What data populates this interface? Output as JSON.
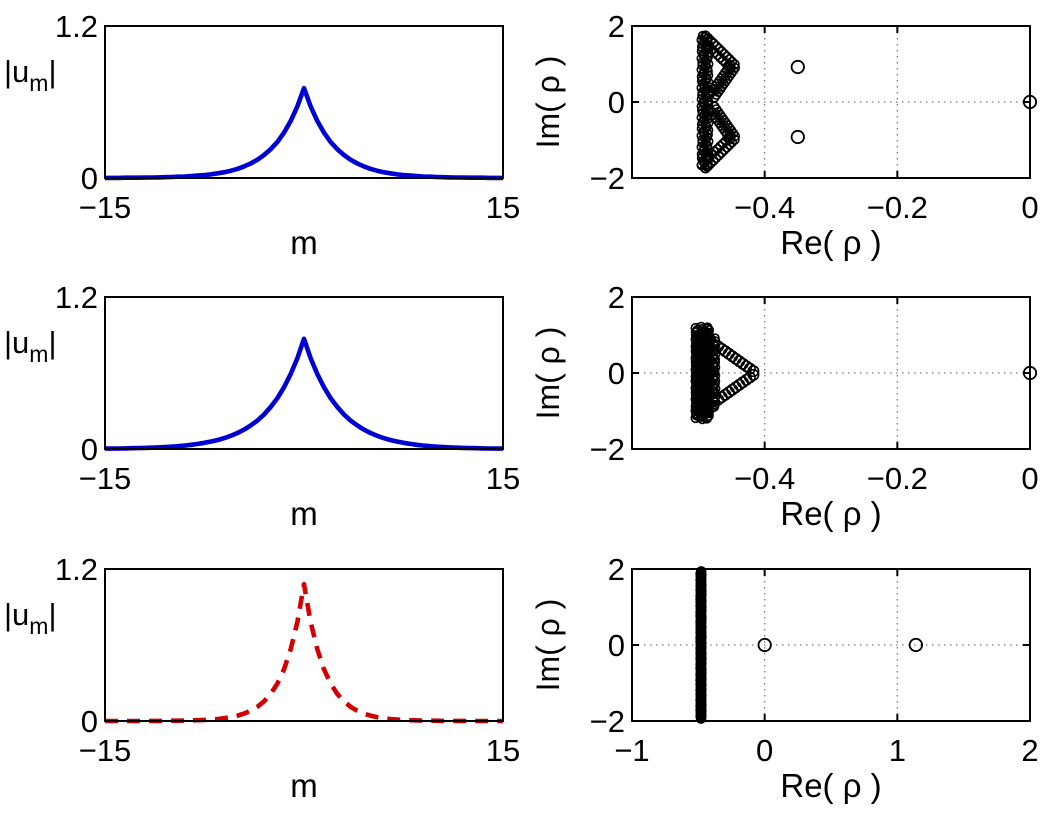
{
  "figure": {
    "background": "#ffffff",
    "axis_color": "#000000",
    "grid_color": "#7a7a7a",
    "marker_color": "#000000",
    "blue_line_color": "#0000d2",
    "red_line_color": "#d40000"
  },
  "chart_data": [
    {
      "id": "profile-top",
      "type": "line",
      "line_style": "solid",
      "color_key": "blue_line_color",
      "xlim": [
        -15,
        15
      ],
      "ylim": [
        0,
        1.2
      ],
      "xticks": [
        {
          "v": -15,
          "t": "−15"
        },
        {
          "v": 15,
          "t": "15"
        }
      ],
      "yticks": [
        {
          "v": 0,
          "t": "0"
        },
        {
          "v": 1.2,
          "t": "1.2"
        }
      ],
      "xlabel": "m",
      "ylabel_parts": {
        "pre": "|u",
        "sub": "m",
        "post": "|"
      },
      "grid": false,
      "series": {
        "symmetric": true,
        "x_step": 0.5,
        "x_max": 15,
        "peak": 0.71,
        "half_values": [
          0.71,
          0.566,
          0.451,
          0.359,
          0.286,
          0.228,
          0.182,
          0.145,
          0.115,
          0.092,
          0.073,
          0.058,
          0.046,
          0.037,
          0.029,
          0.023,
          0.019,
          0.015,
          0.012,
          0.01,
          0.008,
          0.006,
          0.005,
          0.004,
          0.003,
          0.002,
          0.002,
          0.002,
          0.001,
          0.001,
          0.001
        ]
      }
    },
    {
      "id": "spectrum-top",
      "type": "scatter",
      "xlim": [
        -0.6,
        0
      ],
      "ylim": [
        -2,
        2
      ],
      "xticks": [
        {
          "v": -0.4,
          "t": "−0.4"
        },
        {
          "v": -0.2,
          "t": "−0.2"
        },
        {
          "v": 0,
          "t": "0"
        }
      ],
      "yticks": [
        {
          "v": -2,
          "t": "−2"
        },
        {
          "v": 0,
          "t": "0"
        },
        {
          "v": 2,
          "t": "2"
        }
      ],
      "gridx": [
        -0.4,
        -0.2
      ],
      "gridy": [
        0
      ],
      "xlabel": "Re( ρ )",
      "ylabel": "Im( ρ )",
      "clusters": [
        {
          "kind": "vline",
          "re": -0.49,
          "im_from": -1.74,
          "im_to": 1.74,
          "n": 95,
          "jx": 0.005,
          "r": 4.4
        },
        {
          "kind": "chain",
          "from": [
            -0.492,
            1.7
          ],
          "to": [
            -0.448,
            0.94
          ],
          "n": 12,
          "rows": 2,
          "r": 4.2
        },
        {
          "kind": "chain",
          "from": [
            -0.448,
            0.94
          ],
          "to": [
            -0.479,
            0.16
          ],
          "n": 12,
          "rows": 2,
          "r": 4.2
        },
        {
          "kind": "chain",
          "from": [
            -0.492,
            -1.7
          ],
          "to": [
            -0.448,
            -0.94
          ],
          "n": 12,
          "rows": 2,
          "r": 4.2
        },
        {
          "kind": "chain",
          "from": [
            -0.448,
            -0.94
          ],
          "to": [
            -0.479,
            -0.16
          ],
          "n": 12,
          "rows": 2,
          "r": 4.2
        }
      ],
      "points": [
        [
          -0.35,
          0.92
        ],
        [
          -0.35,
          -0.92
        ],
        [
          0,
          0
        ]
      ]
    },
    {
      "id": "profile-middle",
      "type": "line",
      "line_style": "solid",
      "color_key": "blue_line_color",
      "xlim": [
        -15,
        15
      ],
      "ylim": [
        0,
        1.2
      ],
      "xticks": [
        {
          "v": -15,
          "t": "−15"
        },
        {
          "v": 15,
          "t": "15"
        }
      ],
      "yticks": [
        {
          "v": 0,
          "t": "0"
        },
        {
          "v": 1.2,
          "t": "1.2"
        }
      ],
      "xlabel": "m",
      "ylabel_parts": {
        "pre": "|u",
        "sub": "m",
        "post": "|"
      },
      "grid": false,
      "series": {
        "symmetric": true,
        "x_step": 0.5,
        "x_max": 15,
        "peak": 0.87,
        "half_values": [
          0.87,
          0.718,
          0.592,
          0.489,
          0.403,
          0.333,
          0.274,
          0.226,
          0.187,
          0.154,
          0.127,
          0.105,
          0.086,
          0.071,
          0.059,
          0.049,
          0.04,
          0.033,
          0.027,
          0.022,
          0.018,
          0.015,
          0.013,
          0.01,
          0.009,
          0.007,
          0.006,
          0.005,
          0.004,
          0.003,
          0.003
        ]
      }
    },
    {
      "id": "spectrum-middle",
      "type": "scatter",
      "xlim": [
        -0.6,
        0
      ],
      "ylim": [
        -2,
        2
      ],
      "xticks": [
        {
          "v": -0.4,
          "t": "−0.4"
        },
        {
          "v": -0.2,
          "t": "−0.2"
        },
        {
          "v": 0,
          "t": "0"
        }
      ],
      "yticks": [
        {
          "v": -2,
          "t": "−2"
        },
        {
          "v": 0,
          "t": "0"
        },
        {
          "v": 2,
          "t": "2"
        }
      ],
      "gridx": [
        -0.4,
        -0.2
      ],
      "gridy": [
        0
      ],
      "xlabel": "Re( ρ )",
      "ylabel": "Im( ρ )",
      "clusters": [
        {
          "kind": "vline",
          "re": -0.494,
          "im_from": -1.21,
          "im_to": 1.21,
          "n": 170,
          "jx": 0.01,
          "r": 4.4
        },
        {
          "kind": "vline",
          "re": -0.479,
          "im_from": -0.92,
          "im_to": 0.92,
          "n": 70,
          "jx": 0.005,
          "r": 4.0
        },
        {
          "kind": "chain",
          "from": [
            -0.47,
            0.7
          ],
          "to": [
            -0.417,
            0.05
          ],
          "n": 11,
          "rows": 1,
          "r": 5.2
        },
        {
          "kind": "chain",
          "from": [
            -0.47,
            -0.7
          ],
          "to": [
            -0.417,
            -0.05
          ],
          "n": 11,
          "rows": 1,
          "r": 5.2
        }
      ],
      "points": [
        [
          0,
          0
        ]
      ]
    },
    {
      "id": "profile-bottom",
      "type": "line",
      "line_style": "dashed",
      "color_key": "red_line_color",
      "xlim": [
        -15,
        15
      ],
      "ylim": [
        0,
        1.2
      ],
      "xticks": [
        {
          "v": -15,
          "t": "−15"
        },
        {
          "v": 15,
          "t": "15"
        }
      ],
      "yticks": [
        {
          "v": 0,
          "t": "0"
        },
        {
          "v": 1.2,
          "t": "1.2"
        }
      ],
      "xlabel": "m",
      "ylabel_parts": {
        "pre": "|u",
        "sub": "m",
        "post": "|"
      },
      "grid": false,
      "series": {
        "symmetric": true,
        "x_step": 0.5,
        "x_max": 15,
        "peak": 1.08,
        "half_values": [
          1.08,
          0.782,
          0.567,
          0.41,
          0.297,
          0.215,
          0.156,
          0.113,
          0.082,
          0.059,
          0.043,
          0.031,
          0.023,
          0.016,
          0.012,
          0.009,
          0.006,
          0.005,
          0.003,
          0.002,
          0.002,
          0.001,
          0.001,
          0.001,
          0.001,
          0.0,
          0.0,
          0.0,
          0.0,
          0.0,
          0.0
        ]
      }
    },
    {
      "id": "spectrum-bottom",
      "type": "scatter",
      "xlim": [
        -1,
        2
      ],
      "ylim": [
        -2,
        2
      ],
      "xticks": [
        {
          "v": -1,
          "t": "−1"
        },
        {
          "v": 0,
          "t": "0"
        },
        {
          "v": 1,
          "t": "1"
        },
        {
          "v": 2,
          "t": "2"
        }
      ],
      "yticks": [
        {
          "v": -2,
          "t": "−2"
        },
        {
          "v": 0,
          "t": "0"
        },
        {
          "v": 2,
          "t": "2"
        }
      ],
      "gridx": [
        0,
        1
      ],
      "gridy": [
        0
      ],
      "xlabel": "Re( ρ )",
      "ylabel": "Im( ρ )",
      "clusters": [
        {
          "kind": "vline",
          "re": -0.48,
          "im_from": -1.94,
          "im_to": 1.94,
          "n": 120,
          "jx": 0.004,
          "r": 4.4
        }
      ],
      "points": [
        [
          0,
          0
        ],
        [
          1.14,
          0
        ]
      ]
    }
  ]
}
